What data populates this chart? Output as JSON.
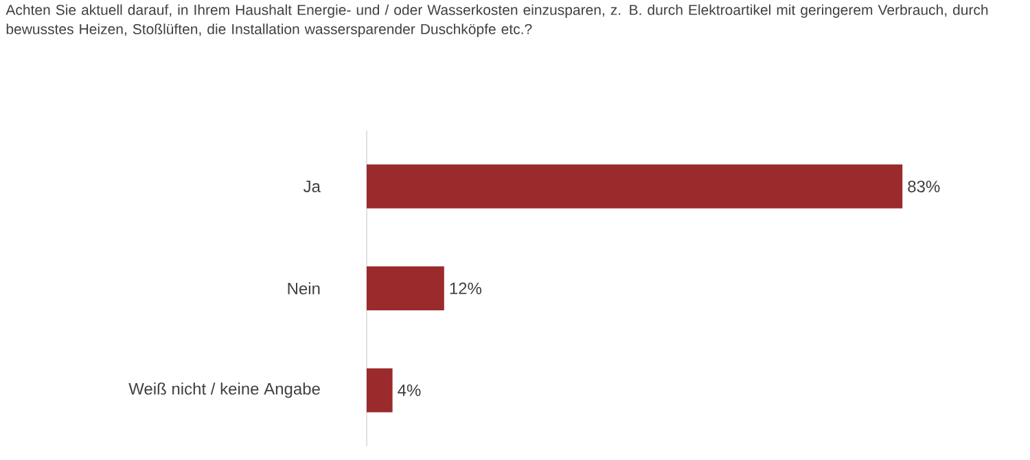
{
  "chart_data": {
    "type": "bar",
    "orientation": "horizontal",
    "title": "Achten Sie aktuell darauf, in Ihrem Haushalt Energie- und / oder Wasserkosten einzusparen, z. B. durch Elektroartikel mit geringerem Verbrauch, durch bewusstes Heizen, Stoßlüften, die Installation wassersparender Duschköpfe etc.?",
    "categories": [
      "Ja",
      "Nein",
      "Weiß nicht / keine Angabe"
    ],
    "values": [
      83,
      12,
      4
    ],
    "value_labels": [
      "83%",
      "12%",
      "4%"
    ],
    "color": "#9b2a2d"
  }
}
